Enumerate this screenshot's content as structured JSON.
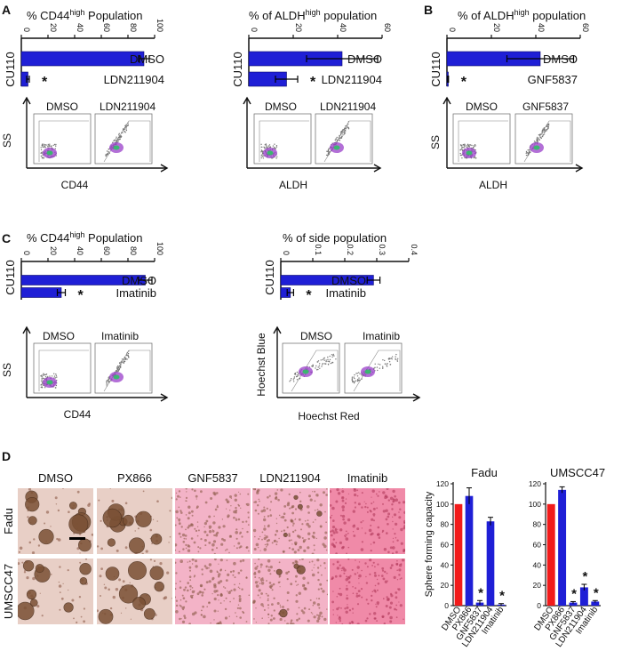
{
  "panel_letters": [
    "A",
    "B",
    "C",
    "D"
  ],
  "colors": {
    "bar_blue": "#1f1fd6",
    "bar_red": "#f21b1b",
    "photo_bg_dense": "#f08aa8",
    "photo_bg_light": "#f3b3c7",
    "photo_bg_plain": "#e8cfc6",
    "photo_colony": "#7a5034",
    "axis": "#111111"
  },
  "chart_data": [
    {
      "id": "A-left",
      "type": "bar",
      "orientation": "horizontal",
      "title": "% CD44high Population",
      "title_main": "% CD44",
      "title_sup": "high",
      "title_rest": " Population",
      "group_label": "CU110",
      "categories": [
        "DMSO",
        "LDN211904"
      ],
      "values": [
        92,
        5
      ],
      "errors": [
        4,
        1
      ],
      "significance": [
        "",
        "*"
      ],
      "ticks": [
        0,
        20,
        40,
        60,
        80,
        100
      ],
      "xlim": [
        0,
        100
      ]
    },
    {
      "id": "A-right",
      "type": "bar",
      "orientation": "horizontal",
      "title": "% of ALDHhigh population",
      "title_main": "% of ALDH",
      "title_sup": "high",
      "title_rest": " population",
      "group_label": "CU110",
      "categories": [
        "DMSO",
        "LDN211904"
      ],
      "values": [
        42,
        17
      ],
      "errors": [
        16,
        5
      ],
      "significance": [
        "",
        "*"
      ],
      "ticks": [
        0,
        20,
        40,
        60
      ],
      "xlim": [
        0,
        60
      ]
    },
    {
      "id": "B",
      "type": "bar",
      "orientation": "horizontal",
      "title": "% of ALDHhigh population",
      "title_main": "% of ALDH",
      "title_sup": "high",
      "title_rest": " population",
      "group_label": "CU110",
      "categories": [
        "DMSO",
        "GNF5837"
      ],
      "values": [
        42,
        0.5
      ],
      "errors": [
        15,
        0.2
      ],
      "significance": [
        "",
        "*"
      ],
      "ticks": [
        0,
        20,
        40,
        60
      ],
      "xlim": [
        0,
        60
      ]
    },
    {
      "id": "C-left",
      "type": "bar",
      "orientation": "horizontal",
      "title": "% CD44high Population",
      "title_main": "% CD44",
      "title_sup": "high",
      "title_rest": " Population",
      "group_label": "CU110",
      "categories": [
        "DMSO",
        "Imatinib"
      ],
      "values": [
        93,
        30
      ],
      "errors": [
        5,
        3
      ],
      "significance": [
        "",
        "*"
      ],
      "ticks": [
        0,
        20,
        40,
        60,
        80,
        100
      ],
      "xlim": [
        0,
        100
      ]
    },
    {
      "id": "C-right",
      "type": "bar",
      "orientation": "horizontal",
      "title": "% of side population",
      "title_main": "% of side population",
      "title_sup": "",
      "title_rest": "",
      "group_label": "CU110",
      "categories": [
        "DMSO",
        "Imatinib"
      ],
      "values": [
        0.29,
        0.03
      ],
      "errors": [
        0.02,
        0.01
      ],
      "significance": [
        "",
        "*"
      ],
      "ticks": [
        0,
        0.1,
        0.2,
        0.3,
        0.4
      ],
      "tick_labels": [
        "0",
        "0.1",
        "0.2",
        "0.3",
        "0.4"
      ],
      "xlim": [
        0,
        0.4
      ]
    },
    {
      "id": "D-fadu",
      "type": "bar",
      "orientation": "vertical",
      "title": "Fadu",
      "ylabel": "Sphere forming capacity",
      "categories": [
        "DMSO",
        "PX866",
        "GNF5837",
        "LDN211904",
        "Imatinib"
      ],
      "values": [
        100,
        108,
        3,
        83,
        1
      ],
      "errors": [
        0,
        8,
        2,
        4,
        1
      ],
      "bar_colors": [
        "red",
        "blue",
        "blue",
        "blue",
        "blue"
      ],
      "significance": [
        "",
        "",
        "*",
        "",
        "*"
      ],
      "ticks": [
        0,
        20,
        40,
        60,
        80,
        100,
        120
      ],
      "ylim": [
        0,
        120
      ]
    },
    {
      "id": "D-umscc47",
      "type": "bar",
      "orientation": "vertical",
      "title": "UMSCC47",
      "ylabel": "",
      "categories": [
        "DMSO",
        "PX866",
        "GNF5837",
        "LDN211904",
        "Imatinib"
      ],
      "values": [
        100,
        114,
        3,
        18,
        4
      ],
      "errors": [
        0,
        3,
        1,
        3,
        1
      ],
      "bar_colors": [
        "red",
        "blue",
        "blue",
        "blue",
        "blue"
      ],
      "significance": [
        "",
        "",
        "*",
        "*",
        "*"
      ],
      "ticks": [
        0,
        20,
        40,
        60,
        80,
        100,
        120
      ],
      "ylim": [
        0,
        120
      ]
    }
  ],
  "flow_panels": [
    {
      "id": "flowA1",
      "yaxis": "SS",
      "xaxis": "CD44",
      "labels": [
        "DMSO",
        "LDN211904"
      ],
      "dense_color": "#9a3fc9"
    },
    {
      "id": "flowA2",
      "yaxis": "",
      "xaxis": "ALDH",
      "labels": [
        "DMSO",
        "LDN211904"
      ],
      "dense_color": "#9a3fc9"
    },
    {
      "id": "flowB",
      "yaxis": "SS",
      "xaxis": "ALDH",
      "labels": [
        "DMSO",
        "GNF5837"
      ],
      "dense_color": "#9a3fc9"
    },
    {
      "id": "flowC1",
      "yaxis": "SS",
      "xaxis": "CD44",
      "labels": [
        "DMSO",
        "Imatinib"
      ],
      "dense_color": "#9a3fc9"
    },
    {
      "id": "flowC2",
      "yaxis": "Hoechst Blue",
      "xaxis": "Hoechst Red",
      "labels": [
        "DMSO",
        "Imatinib"
      ],
      "dense_color": "#9a3fc9"
    }
  ],
  "micrographs": {
    "columns": [
      "DMSO",
      "PX866",
      "GNF5837",
      "LDN211904",
      "Imatinib"
    ],
    "rows": [
      "Fadu",
      "UMSCC47"
    ]
  }
}
